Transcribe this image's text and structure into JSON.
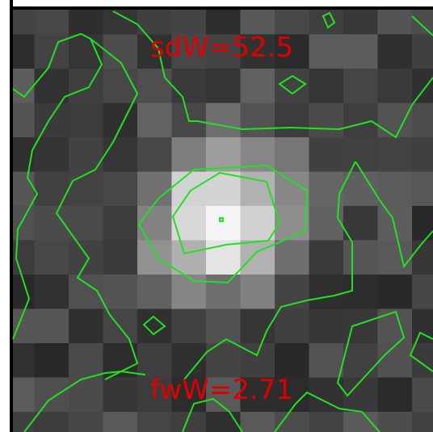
{
  "labels": {
    "sdw": "sdW=52.5",
    "fww": "fwW=2.71"
  },
  "colors": {
    "contour": "#22e022",
    "label": "#e00000",
    "frame": "#000000"
  }
}
